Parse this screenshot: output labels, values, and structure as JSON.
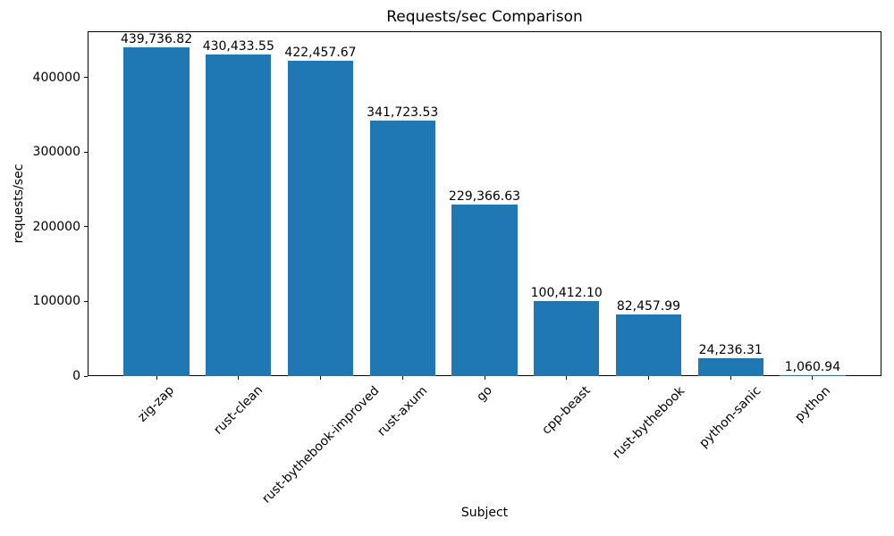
{
  "chart_data": {
    "type": "bar",
    "title": "Requests/sec Comparison",
    "xlabel": "Subject",
    "ylabel": "requests/sec",
    "categories": [
      "zig-zap",
      "rust-clean",
      "rust-bythebook-improved",
      "rust-axum",
      "go",
      "cpp-beast",
      "rust-bythebook",
      "python-sanic",
      "python"
    ],
    "values": [
      439736.82,
      430433.55,
      422457.67,
      341723.53,
      229366.63,
      100412.1,
      82457.99,
      24236.31,
      1060.94
    ],
    "value_labels": [
      "439,736.82",
      "430,433.55",
      "422,457.67",
      "341,723.53",
      "229,366.63",
      "100,412.10",
      "82,457.99",
      "24,236.31",
      "1,060.94"
    ],
    "yticks": [
      0,
      100000,
      200000,
      300000,
      400000
    ],
    "ylim": [
      0,
      461723.66
    ],
    "bar_color": "#1f77b4",
    "x_tick_rotation": 45,
    "grid": false,
    "legend": null
  }
}
